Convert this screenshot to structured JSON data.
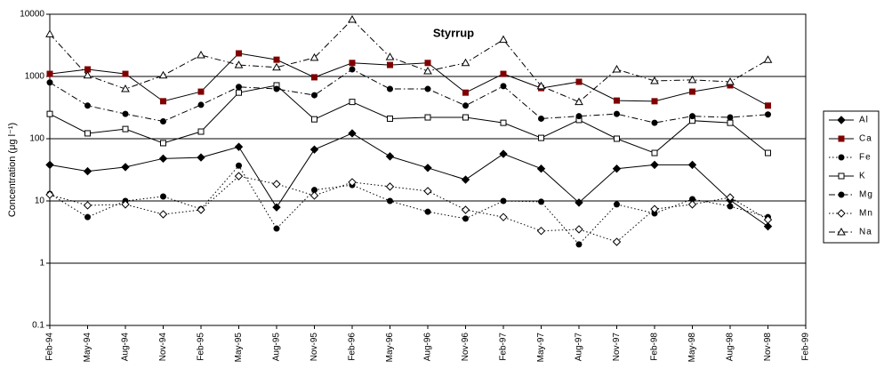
{
  "chart_data": {
    "type": "line",
    "title": "Styrrup",
    "y_label": "Concentration (μg l⁻¹)",
    "log_scale_y": true,
    "grid": true,
    "legend": "right",
    "categories": [
      "Feb-94",
      "May-94",
      "Aug-94",
      "Nov-94",
      "Feb-95",
      "May-95",
      "Aug-95",
      "Nov-95",
      "Feb-96",
      "May-96",
      "Aug-96",
      "Nov-96",
      "Feb-97",
      "May-97",
      "Aug-97",
      "Nov-97",
      "Feb-98",
      "May-98",
      "Aug-98",
      "Nov-98",
      "Feb-99"
    ],
    "ylim": [
      0.1,
      10000
    ],
    "yticks": [
      0.1,
      1,
      10,
      100,
      1000,
      10000
    ],
    "series": [
      {
        "name": "Al",
        "color": "#000000",
        "marker": "diamond",
        "marker_color": "#000000",
        "filled": true,
        "dash": "solid",
        "values": [
          38,
          30,
          35,
          48,
          50,
          74,
          7.9,
          67,
          122,
          52,
          34,
          22,
          57,
          33,
          9.4,
          33,
          38,
          38,
          10.3,
          3.9,
          null
        ]
      },
      {
        "name": "Ca",
        "color": "#000000",
        "marker": "square",
        "marker_color": "#800000",
        "filled": true,
        "dash": "solid",
        "values": [
          1100,
          1300,
          1100,
          400,
          570,
          2350,
          1860,
          970,
          1650,
          1530,
          1650,
          550,
          1100,
          650,
          820,
          410,
          400,
          570,
          720,
          340,
          null
        ]
      },
      {
        "name": "Fe",
        "color": "#000000",
        "marker": "circle",
        "marker_color": "#000000",
        "filled": true,
        "dash": "dotted",
        "values": [
          13,
          5.5,
          10,
          11.8,
          7.4,
          37,
          3.6,
          15,
          18,
          10,
          6.7,
          5.2,
          10,
          9.7,
          2.0,
          8.8,
          6.3,
          10.7,
          8.2,
          5.5,
          null
        ]
      },
      {
        "name": "K",
        "color": "#000000",
        "marker": "square",
        "marker_color": "#000000",
        "filled": false,
        "dash": "solid",
        "values": [
          250,
          122,
          143,
          85,
          130,
          550,
          720,
          205,
          390,
          210,
          220,
          220,
          180,
          103,
          200,
          100,
          59,
          195,
          180,
          59,
          null
        ]
      },
      {
        "name": "Mg",
        "color": "#000000",
        "marker": "circle",
        "marker_color": "#000000",
        "filled": true,
        "dash": "dashdot",
        "values": [
          800,
          340,
          250,
          190,
          350,
          680,
          630,
          500,
          1300,
          630,
          630,
          340,
          700,
          210,
          230,
          250,
          180,
          230,
          220,
          245,
          null
        ]
      },
      {
        "name": "Mn",
        "color": "#000000",
        "marker": "diamond",
        "marker_color": "#000000",
        "filled": false,
        "dash": "dotted",
        "values": [
          12.6,
          8.5,
          8.8,
          6.1,
          7.2,
          25,
          18.7,
          12.2,
          20,
          17,
          14.4,
          7.2,
          5.5,
          3.3,
          3.5,
          2.2,
          7.4,
          8.8,
          11.4,
          5.0,
          null
        ]
      },
      {
        "name": "Na",
        "color": "#000000",
        "marker": "triangle",
        "marker_color": "#000000",
        "filled": false,
        "dash": "dashdot",
        "values": [
          4800,
          1040,
          630,
          1040,
          2200,
          1530,
          1400,
          2000,
          8200,
          2050,
          1220,
          1650,
          3900,
          700,
          390,
          1300,
          850,
          880,
          820,
          1850,
          null
        ]
      }
    ]
  }
}
